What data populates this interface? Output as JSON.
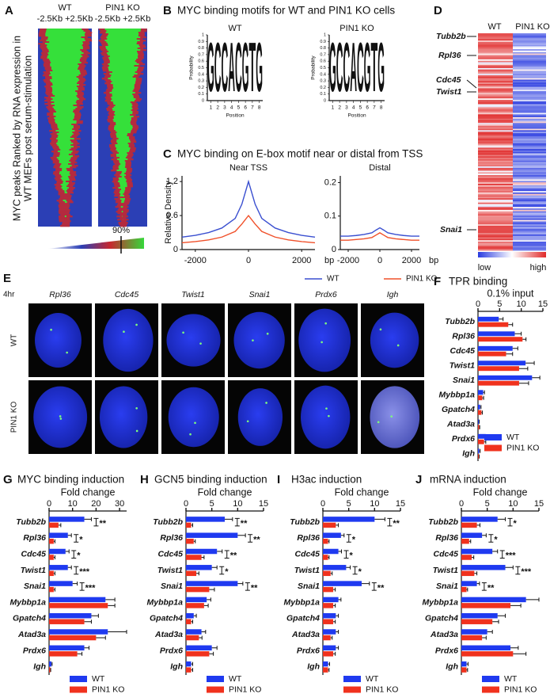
{
  "chart_data": [
    {
      "type": "density_heatmap",
      "panel": "A",
      "ylabel_lines": [
        "MYC peaks Ranked by RNA expression in",
        "WT MEFs post serum-stimulation"
      ],
      "columns": [
        {
          "name": "WT",
          "range": "-2.5Kb +2.5Kb"
        },
        {
          "name": "PIN1 KO",
          "range": "-2.5Kb +2.5Kb"
        }
      ],
      "colorbar_label": "90%"
    },
    {
      "type": "logo",
      "panel": "B",
      "title": "MYC binding motifs for WT and PIN1 KO cells",
      "letter_colors": {
        "A": "#2e9d4a",
        "C": "#2f4fc4",
        "G": "#f2a019",
        "T": "#d3202a"
      },
      "logos": [
        {
          "name": "WT",
          "ylabel": "Probability",
          "xlabel": "Position",
          "letters": [
            "G",
            "C",
            "C",
            "A",
            "C",
            "G",
            "T",
            "G"
          ]
        },
        {
          "name": "PIN1 KO",
          "ylabel": "Probability",
          "xlabel": "Position",
          "letters": [
            "G",
            "C",
            "C",
            "A",
            "C",
            "G",
            "T",
            "G"
          ]
        }
      ],
      "yticks": [
        0,
        0.1,
        0.2,
        0.3,
        0.4,
        0.5,
        0.6,
        0.7,
        0.8,
        0.9,
        1
      ],
      "ylim": [
        0,
        1
      ],
      "xticks": [
        1,
        2,
        3,
        4,
        5,
        6,
        7,
        8
      ]
    },
    {
      "type": "line",
      "panel": "C",
      "title": "MYC binding on E-box motif near or distal from TSS",
      "ylabel": "Relative Density",
      "x": [
        -2500,
        -2000,
        -1500,
        -1000,
        -500,
        -250,
        0,
        250,
        500,
        1000,
        1500,
        2000,
        2500
      ],
      "xlim": [
        -2500,
        2500
      ],
      "xticks": [
        -2000,
        0,
        2000
      ],
      "series": [
        {
          "name": "WT",
          "color": "#3a4fd0"
        },
        {
          "name": "PIN1 KO",
          "color": "#f0502a"
        }
      ],
      "panels": [
        {
          "subtitle": "Near TSS",
          "xlabel": "bp",
          "ylim": [
            0,
            1.3
          ],
          "yticks": [
            0,
            0.6,
            1.2
          ],
          "values": [
            [
              0.22,
              0.25,
              0.3,
              0.38,
              0.55,
              0.8,
              1.2,
              0.8,
              0.55,
              0.38,
              0.3,
              0.25,
              0.22
            ],
            [
              0.12,
              0.14,
              0.17,
              0.22,
              0.32,
              0.45,
              0.6,
              0.45,
              0.32,
              0.22,
              0.17,
              0.14,
              0.12
            ]
          ]
        },
        {
          "subtitle": "Distal",
          "xlabel": "bp",
          "ylim": [
            0,
            0.22
          ],
          "yticks": [
            0,
            0.1,
            0.2
          ],
          "values": [
            [
              0.04,
              0.04,
              0.042,
              0.045,
              0.05,
              0.058,
              0.065,
              0.058,
              0.05,
              0.045,
              0.042,
              0.04,
              0.04
            ],
            [
              0.028,
              0.028,
              0.03,
              0.032,
              0.036,
              0.043,
              0.05,
              0.043,
              0.036,
              0.032,
              0.03,
              0.028,
              0.028
            ]
          ]
        }
      ]
    },
    {
      "type": "heatmap",
      "panel": "D",
      "columns": [
        "WT",
        "PIN1 KO"
      ],
      "genes": [
        "Tubb2b",
        "Rpl36",
        "Cdc45",
        "Twist1",
        "Snai1"
      ],
      "low_label": "low",
      "high_label": "high"
    },
    {
      "type": "image",
      "panel": "E",
      "time": "4hr",
      "genes": [
        "Rpl36",
        "Cdc45",
        "Twist1",
        "Snai1",
        "Prdx6",
        "Igh"
      ],
      "rows": [
        "WT",
        "PIN1 KO"
      ]
    },
    {
      "type": "bar",
      "panel": "F",
      "title": "TPR binding",
      "xlabel": "0.1% input",
      "xlim": [
        0,
        15
      ],
      "xticks": [
        0,
        5,
        10,
        15
      ],
      "categories": [
        "Tubb2b",
        "Rpl36",
        "Cdc45",
        "Twist1",
        "Snai1",
        "Mybbp1a",
        "Gpatch4",
        "Atad3a",
        "Prdx6",
        "Igh"
      ],
      "series": [
        {
          "name": "WT",
          "color": "#1f3af0",
          "values": [
            4.8,
            8.5,
            8,
            11,
            12.5,
            1.2,
            0.5,
            0.2,
            1.8,
            0.3
          ],
          "errors": [
            1,
            1.5,
            1.2,
            2,
            1.8,
            0.3,
            0.2,
            0.1,
            0.5,
            0.2
          ]
        },
        {
          "name": "PIN1 KO",
          "color": "#f0321e",
          "values": [
            7,
            10.3,
            6.5,
            9.5,
            9.5,
            1,
            0.8,
            0.3,
            1.4,
            0.2
          ],
          "errors": [
            1,
            0.8,
            1.5,
            2,
            2.2,
            0.3,
            0.2,
            0.1,
            0.4,
            0.1
          ]
        }
      ]
    },
    {
      "type": "bar",
      "panel": "G",
      "title": "MYC binding induction",
      "xlabel": "Fold change",
      "xlim": [
        0,
        33
      ],
      "xticks": [
        0,
        10,
        20,
        30
      ],
      "categories": [
        "Tubb2b",
        "Rpl36",
        "Cdc45",
        "Twist1",
        "Snai1",
        "Mybbp1a",
        "Gpatch4",
        "Atad3a",
        "Prdx6",
        "Igh"
      ],
      "significance": [
        "**",
        "*",
        "*",
        "***",
        "***",
        null,
        null,
        null,
        null,
        null
      ],
      "series": [
        {
          "name": "WT",
          "color": "#1f3af0",
          "values": [
            15,
            8,
            7,
            8,
            10,
            24,
            18,
            25,
            15,
            1
          ],
          "errors": [
            3,
            1.5,
            1.5,
            1.5,
            2,
            4,
            3,
            8,
            2,
            0.3
          ]
        },
        {
          "name": "PIN1 KO",
          "color": "#f0321e",
          "values": [
            4,
            2,
            2,
            2,
            2,
            25,
            15,
            20,
            12,
            0.5
          ],
          "errors": [
            1,
            0.5,
            0.5,
            0.5,
            0.5,
            3,
            3,
            4,
            2,
            0.2
          ]
        }
      ]
    },
    {
      "type": "bar",
      "panel": "H",
      "title": "GCN5 binding induction",
      "xlabel": "Fold change",
      "xlim": [
        0,
        15
      ],
      "xticks": [
        0,
        5,
        10,
        15
      ],
      "categories": [
        "Tubb2b",
        "Rpl36",
        "Cdc45",
        "Twist1",
        "Snai1",
        "Mybbp1a",
        "Gpatch4",
        "Atad3a",
        "Prdx6",
        "Igh"
      ],
      "significance": [
        "**",
        "**",
        "**",
        "*",
        "**",
        null,
        null,
        null,
        null,
        null
      ],
      "series": [
        {
          "name": "WT",
          "color": "#1f3af0",
          "values": [
            7.5,
            10,
            6,
            5,
            10,
            4,
            1.5,
            3,
            5,
            1
          ],
          "errors": [
            1.5,
            1.5,
            1,
            1,
            1,
            0.8,
            0.5,
            0.8,
            1,
            0.3
          ]
        },
        {
          "name": "PIN1 KO",
          "color": "#f0321e",
          "values": [
            1,
            1.5,
            3,
            2,
            4.5,
            3.5,
            1,
            2.5,
            4.5,
            1
          ],
          "errors": [
            0.3,
            0.3,
            0.5,
            0.5,
            1,
            0.8,
            0.3,
            0.6,
            0.8,
            0.3
          ]
        }
      ]
    },
    {
      "type": "bar",
      "panel": "I",
      "title": "H3ac induction",
      "xlabel": "Fold change",
      "xlim": [
        0,
        15
      ],
      "xticks": [
        0,
        5,
        10,
        15
      ],
      "categories": [
        "Tubb2b",
        "Rpl36",
        "Cdc45",
        "Twist1",
        "Snai1",
        "Mybbp1a",
        "Gpatch4",
        "Atad3a",
        "Prdx6",
        "Igh"
      ],
      "significance": [
        "**",
        "*",
        "*",
        "*",
        "**",
        null,
        null,
        null,
        null,
        null
      ],
      "series": [
        {
          "name": "WT",
          "color": "#1f3af0",
          "values": [
            10,
            3.5,
            3,
            4.5,
            7.5,
            3,
            2.5,
            2.5,
            2.5,
            1
          ],
          "errors": [
            2,
            0.6,
            0.6,
            0.8,
            1.5,
            0.5,
            0.5,
            0.5,
            0.5,
            0.3
          ]
        },
        {
          "name": "PIN1 KO",
          "color": "#f0321e",
          "values": [
            2.5,
            1,
            1,
            1.5,
            2,
            2,
            2,
            1.5,
            2,
            1
          ],
          "errors": [
            0.5,
            0.2,
            0.2,
            0.3,
            0.4,
            0.4,
            0.4,
            0.3,
            0.4,
            0.2
          ]
        }
      ]
    },
    {
      "type": "bar",
      "panel": "J",
      "title": "mRNA induction",
      "xlabel": "Fold change",
      "xlim": [
        0,
        15
      ],
      "xticks": [
        0,
        5,
        10,
        15
      ],
      "categories": [
        "Tubb2b",
        "Rpl36",
        "Cdc45",
        "Twist1",
        "Snai1",
        "Mybbp1a",
        "Gpatch4",
        "Atad3a",
        "Prdx6",
        "Igh"
      ],
      "significance": [
        "*",
        "*",
        "***",
        "***",
        "**",
        null,
        null,
        null,
        null,
        null
      ],
      "series": [
        {
          "name": "WT",
          "color": "#1f3af0",
          "values": [
            7,
            4,
            6,
            8.5,
            3,
            12.5,
            7,
            5,
            9.5,
            1
          ],
          "errors": [
            1.5,
            0.8,
            1,
            1.5,
            0.5,
            2.5,
            1.5,
            1,
            1.5,
            0.3
          ]
        },
        {
          "name": "PIN1 KO",
          "color": "#f0321e",
          "values": [
            3,
            1.5,
            2,
            2.5,
            1,
            9.5,
            6,
            4,
            10,
            1
          ],
          "errors": [
            0.6,
            0.3,
            0.4,
            0.5,
            0.2,
            2,
            1.2,
            0.8,
            2.5,
            0.2
          ]
        }
      ]
    }
  ]
}
